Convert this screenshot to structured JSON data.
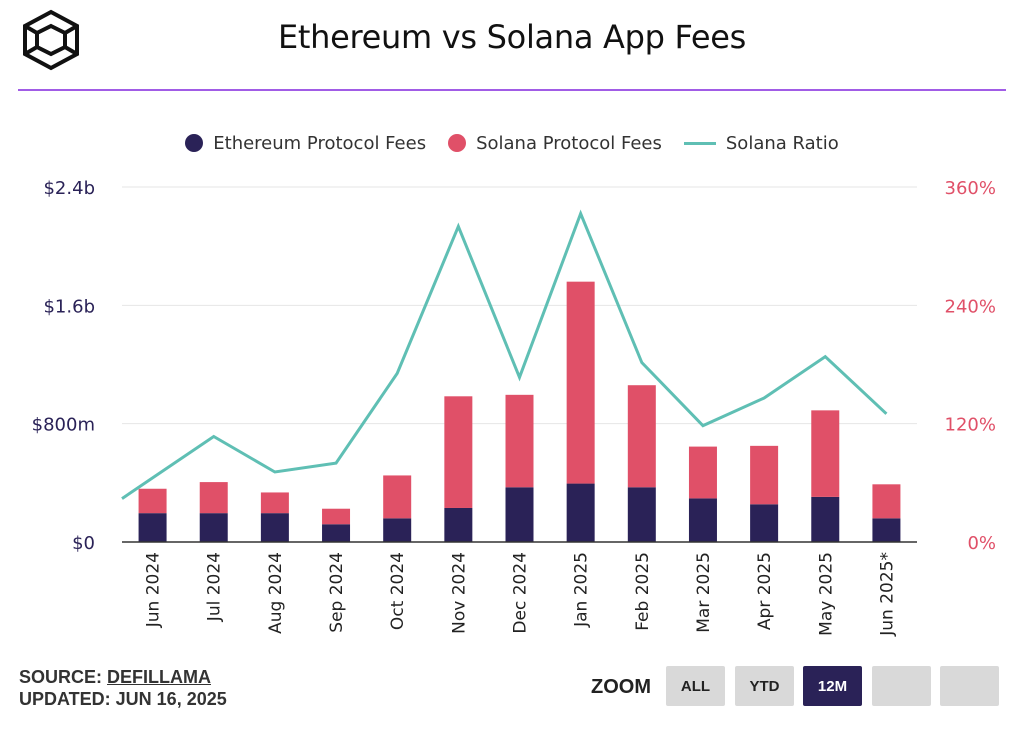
{
  "header": {
    "title": "Ethereum vs Solana App Fees"
  },
  "legend": [
    {
      "label": "Ethereum Protocol Fees",
      "kind": "dot",
      "color": "#2a2257"
    },
    {
      "label": "Solana Protocol Fees",
      "kind": "dot",
      "color": "#e05068"
    },
    {
      "label": "Solana Ratio",
      "kind": "line",
      "color": "#5fbfb4"
    }
  ],
  "footer": {
    "source_prefix": "SOURCE: ",
    "source_name": "DEFILLAMA",
    "updated": "UPDATED: JUN 16, 2025",
    "zoom_label": "ZOOM",
    "buttons": [
      "ALL",
      "YTD",
      "12M",
      "",
      ""
    ],
    "active_button": "12M"
  },
  "chart_data": {
    "type": "bar",
    "stacked": true,
    "categories": [
      "Jun 2024",
      "Jul 2024",
      "Aug 2024",
      "Sep 2024",
      "Oct 2024",
      "Nov 2024",
      "Dec 2024",
      "Jan 2025",
      "Feb 2025",
      "Mar 2025",
      "Apr 2025",
      "May 2025",
      "Jun 2025*"
    ],
    "series": [
      {
        "name": "Ethereum Protocol Fees",
        "type": "bar",
        "axis": "left",
        "color": "#2a2257",
        "values": [
          195,
          195,
          195,
          120,
          160,
          230,
          370,
          395,
          370,
          295,
          255,
          305,
          160
        ]
      },
      {
        "name": "Solana Protocol Fees",
        "type": "bar",
        "axis": "left",
        "color": "#e05068",
        "values": [
          165,
          210,
          140,
          105,
          290,
          755,
          625,
          1365,
          690,
          350,
          395,
          585,
          230
        ]
      },
      {
        "name": "Solana Ratio",
        "type": "line",
        "axis": "right",
        "color": "#5fbfb4",
        "values": [
          65,
          107,
          71,
          80,
          171,
          320,
          167,
          333,
          182,
          118,
          146,
          188,
          130
        ]
      }
    ],
    "y_left": {
      "min": 0,
      "max": 2400,
      "ticks": [
        0,
        800,
        1600,
        2400
      ],
      "tick_labels": [
        "$0",
        "$800m",
        "$1.6b",
        "$2.4b"
      ]
    },
    "y_right": {
      "min": 0,
      "max": 360,
      "ticks": [
        0,
        120,
        240,
        360
      ],
      "tick_labels": [
        "0%",
        "120%",
        "240%",
        "360%"
      ]
    },
    "grid": true,
    "legend_position": "top-center"
  }
}
